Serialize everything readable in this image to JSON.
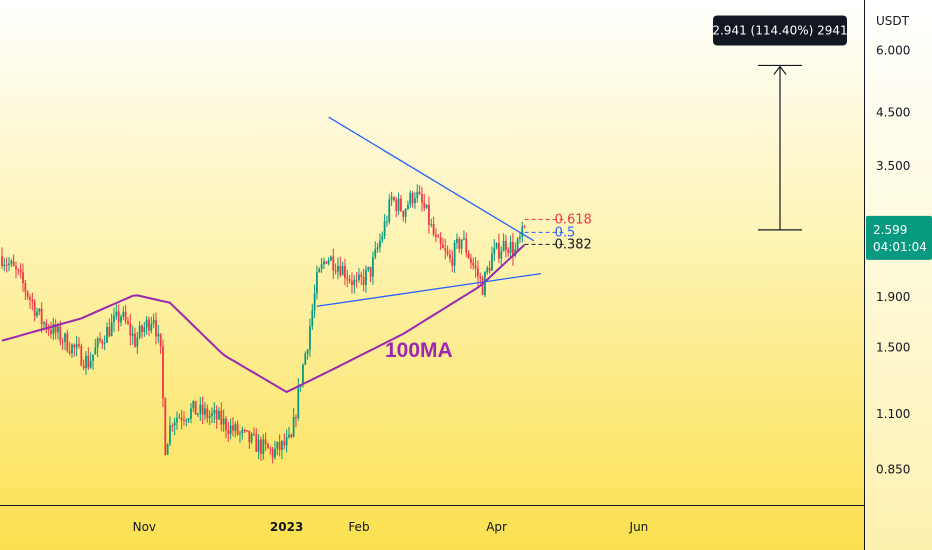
{
  "chart_data": {
    "type": "candlestick",
    "currency": "USDT",
    "y_scale": "log",
    "ylim": [
      0.72,
      7.6
    ],
    "x_ticks": [
      {
        "date": "2022-11-01",
        "label": "Nov",
        "bold": false
      },
      {
        "date": "2023-01-01",
        "label": "2023",
        "bold": true
      },
      {
        "date": "2023-02-01",
        "label": "Feb",
        "bold": false
      },
      {
        "date": "2023-04-01",
        "label": "Apr",
        "bold": false
      },
      {
        "date": "2023-06-01",
        "label": "Jun",
        "bold": false
      }
    ],
    "y_ticks": [
      "6.000",
      "4.500",
      "3.500",
      "1.900",
      "1.500",
      "1.100",
      "0.850"
    ],
    "current_price": {
      "value": 2.599,
      "label": "2.599",
      "countdown": "04:01:04"
    },
    "ma_label": "100MA",
    "fib_levels": [
      {
        "level": 0.618,
        "label": "0.618",
        "price": 2.73,
        "color": "#f23645"
      },
      {
        "level": 0.5,
        "label": "0.5",
        "price": 2.57,
        "color": "#2962ff"
      },
      {
        "level": 0.382,
        "label": "0.382",
        "price": 2.43,
        "color": "#131722"
      }
    ],
    "projection": {
      "from_price": 2.6,
      "to_price": 5.6,
      "label": "2.941 (114.40%) 2941"
    },
    "colors": {
      "up": "#089981",
      "down": "#f23645",
      "ma": "#9c27b0",
      "trendline": "#2962ff",
      "price_tag": "#089981",
      "tooltip": "#131722"
    },
    "candles_anchor": [
      [
        "2022-09-01",
        2.3
      ],
      [
        "2022-09-08",
        2.1
      ],
      [
        "2022-09-18",
        1.7
      ],
      [
        "2022-09-28",
        1.55
      ],
      [
        "2022-10-08",
        1.4
      ],
      [
        "2022-10-15",
        1.6
      ],
      [
        "2022-10-22",
        1.75
      ],
      [
        "2022-10-28",
        1.55
      ],
      [
        "2022-11-05",
        1.75
      ],
      [
        "2022-11-08",
        1.45
      ],
      [
        "2022-11-10",
        0.95
      ],
      [
        "2022-11-13",
        1.08
      ],
      [
        "2022-11-22",
        1.12
      ],
      [
        "2022-12-02",
        1.08
      ],
      [
        "2022-12-12",
        1.0
      ],
      [
        "2022-12-20",
        0.95
      ],
      [
        "2022-12-26",
        0.92
      ],
      [
        "2023-01-03",
        0.97
      ],
      [
        "2023-01-07",
        1.3
      ],
      [
        "2023-01-10",
        1.55
      ],
      [
        "2023-01-14",
        2.05
      ],
      [
        "2023-01-18",
        2.3
      ],
      [
        "2023-01-24",
        2.2
      ],
      [
        "2023-01-31",
        2.0
      ],
      [
        "2023-02-06",
        2.15
      ],
      [
        "2023-02-11",
        2.55
      ],
      [
        "2023-02-15",
        3.0
      ],
      [
        "2023-02-20",
        2.85
      ],
      [
        "2023-02-25",
        3.1
      ],
      [
        "2023-03-02",
        2.8
      ],
      [
        "2023-03-06",
        2.45
      ],
      [
        "2023-03-12",
        2.25
      ],
      [
        "2023-03-17",
        2.5
      ],
      [
        "2023-03-22",
        2.2
      ],
      [
        "2023-03-26",
        2.0
      ],
      [
        "2023-03-30",
        2.3
      ],
      [
        "2023-04-05",
        2.45
      ],
      [
        "2023-04-09",
        2.35
      ],
      [
        "2023-04-13",
        2.6
      ]
    ],
    "ma_anchor": [
      [
        "2022-09-01",
        1.55
      ],
      [
        "2022-10-05",
        1.72
      ],
      [
        "2022-10-28",
        1.92
      ],
      [
        "2022-11-12",
        1.85
      ],
      [
        "2022-12-05",
        1.45
      ],
      [
        "2023-01-01",
        1.22
      ],
      [
        "2023-01-20",
        1.35
      ],
      [
        "2023-02-20",
        1.6
      ],
      [
        "2023-03-25",
        2.0
      ],
      [
        "2023-04-14",
        2.45
      ]
    ],
    "trendlines": [
      {
        "name": "upper",
        "from": [
          "2023-01-19",
          4.4
        ],
        "to": [
          "2023-04-17",
          2.47
        ]
      },
      {
        "name": "lower",
        "from": [
          "2023-01-14",
          1.82
        ],
        "to": [
          "2023-04-20",
          2.12
        ]
      }
    ]
  }
}
